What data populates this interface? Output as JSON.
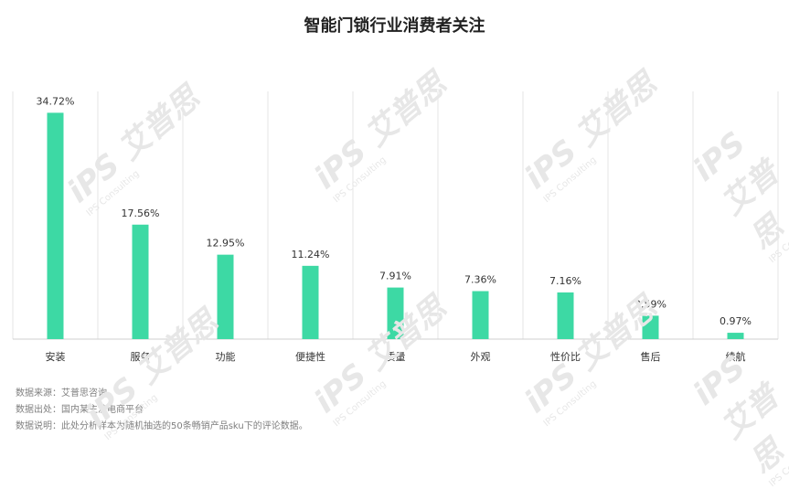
{
  "chart_data": {
    "type": "bar",
    "title": "智能门锁行业消费者关注",
    "categories": [
      "安装",
      "服务",
      "功能",
      "便捷性",
      "质量",
      "外观",
      "性价比",
      "售后",
      "续航"
    ],
    "values": [
      34.72,
      17.56,
      12.95,
      11.24,
      7.91,
      7.36,
      7.16,
      3.59,
      0.97
    ],
    "value_labels": [
      "34.72%",
      "17.56%",
      "12.95%",
      "11.24%",
      "7.91%",
      "7.36%",
      "7.16%",
      "3.59%",
      "0.97%"
    ],
    "ylim": [
      0,
      38
    ],
    "grid": "vertical category separators",
    "bar_color": "#3dd9a4"
  },
  "footer": {
    "source": "数据来源：艾普思咨询",
    "origin": "数据出处：国内某主流电商平台",
    "note": "数据说明：此处分析样本为随机抽选的50条畅销产品sku下的评论数据。"
  },
  "watermark": {
    "brand": "iPS 艾普思",
    "sub": "IPS Consulting"
  }
}
